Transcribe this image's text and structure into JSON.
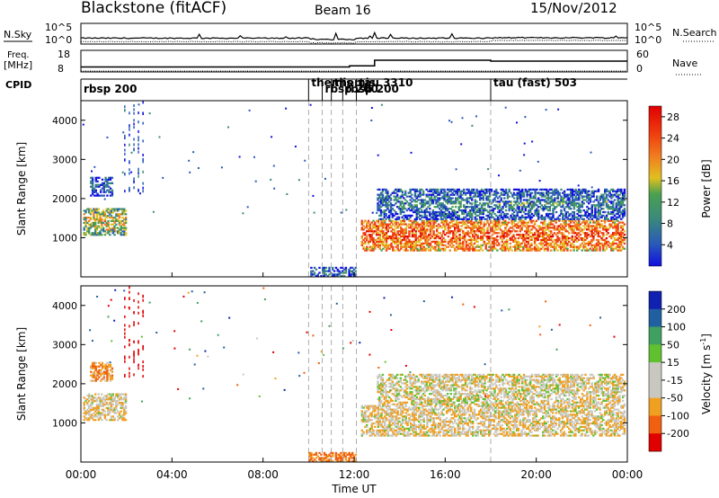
{
  "header": {
    "station": "Blackstone (fitACF)",
    "beam": "Beam 16",
    "date": "15/Nov/2012"
  },
  "noise_panel": {
    "left_label": "N.Sky",
    "right_label": "N.Search",
    "left_ticks": [
      "10^5",
      "10^0"
    ],
    "right_ticks": [
      "10^5",
      "10^0"
    ]
  },
  "freq_panel": {
    "left_label_1": "Freq.",
    "left_label_2": "[MHz]",
    "right_label": "Nave",
    "left_ticks": [
      "18",
      "8"
    ],
    "right_ticks": [
      "60",
      "0"
    ]
  },
  "cpid": {
    "label": "CPID",
    "segments": [
      {
        "label": "rbsp 200",
        "start_hour": 0.0
      },
      {
        "label": "themis",
        "start_hour": 10.0
      },
      {
        "label": "rbsp 200",
        "start_hour": 10.6
      },
      {
        "label": "themis",
        "start_hour": 11.0
      },
      {
        "label": "rbsp 200",
        "start_hour": 11.5
      },
      {
        "label": "tau 3310",
        "start_hour": 12.1
      },
      {
        "label": "tau (fast) 503",
        "start_hour": 18.0
      }
    ]
  },
  "power_panel": {
    "ylabel": "Slant Range [km]",
    "cbar_label": "Power [dB]",
    "cbar_ticks": [
      "28",
      "24",
      "20",
      "16",
      "12",
      "8",
      "4"
    ]
  },
  "velocity_panel": {
    "ylabel": "Slant Range [km]",
    "cbar_label": "Velocity [m s",
    "cbar_label_sup": "-1",
    "cbar_label_end": "]",
    "cbar_ticks": [
      "200",
      "100",
      "50",
      "15",
      "-15",
      "-50",
      "-100",
      "-200"
    ]
  },
  "xaxis": {
    "label": "Time UT",
    "ticks": [
      "00:00",
      "04:00",
      "08:00",
      "12:00",
      "16:00",
      "20:00",
      "00:00"
    ]
  },
  "chart_data": {
    "type": "heatmap",
    "title": "Blackstone (fitACF)",
    "xlabel": "Time UT",
    "ylabel": "Slant Range [km]",
    "xlim_hours": [
      0,
      24
    ],
    "ylim_km": [
      0,
      4500
    ],
    "y_ticks_km": [
      1000,
      2000,
      3000,
      4000
    ],
    "power_scale_db": [
      0,
      30
    ],
    "velocity_scale_ms": [
      -250,
      250
    ],
    "noise_log_range": [
      0,
      5
    ],
    "freq_range_mhz": [
      8,
      18
    ],
    "nave_range": [
      0,
      60
    ],
    "freq_steps": [
      {
        "t0": 0.0,
        "t1": 11.8,
        "mhz": 10.3
      },
      {
        "t0": 11.8,
        "t1": 12.9,
        "mhz": 10.8
      },
      {
        "t0": 12.9,
        "t1": 18.0,
        "mhz": 13.4
      },
      {
        "t0": 18.0,
        "t1": 24.0,
        "mhz": 13.0
      }
    ],
    "echo_regions": [
      {
        "name": "near-range band",
        "t0": 0.1,
        "t1": 2.0,
        "r0": 1100,
        "r1": 1800,
        "power_db": 18,
        "velocity_ms": -10
      },
      {
        "name": "far-range patch",
        "t0": 0.4,
        "t1": 1.4,
        "r0": 2100,
        "r1": 2600,
        "power_db": 8,
        "velocity_ms": -40
      },
      {
        "name": "evening band",
        "t0": 12.3,
        "t1": 23.9,
        "r0": 700,
        "r1": 1500,
        "power_db": 26,
        "velocity_ms": -10
      },
      {
        "name": "evening upper band",
        "t0": 13.0,
        "t1": 23.9,
        "r0": 1500,
        "r1": 2300,
        "power_db": 10,
        "velocity_ms": -5
      },
      {
        "name": "ground scatter streak",
        "t0": 10.0,
        "t1": 12.1,
        "r0": 0,
        "r1": 300,
        "power_db": 9,
        "velocity_ms": -60
      }
    ]
  }
}
